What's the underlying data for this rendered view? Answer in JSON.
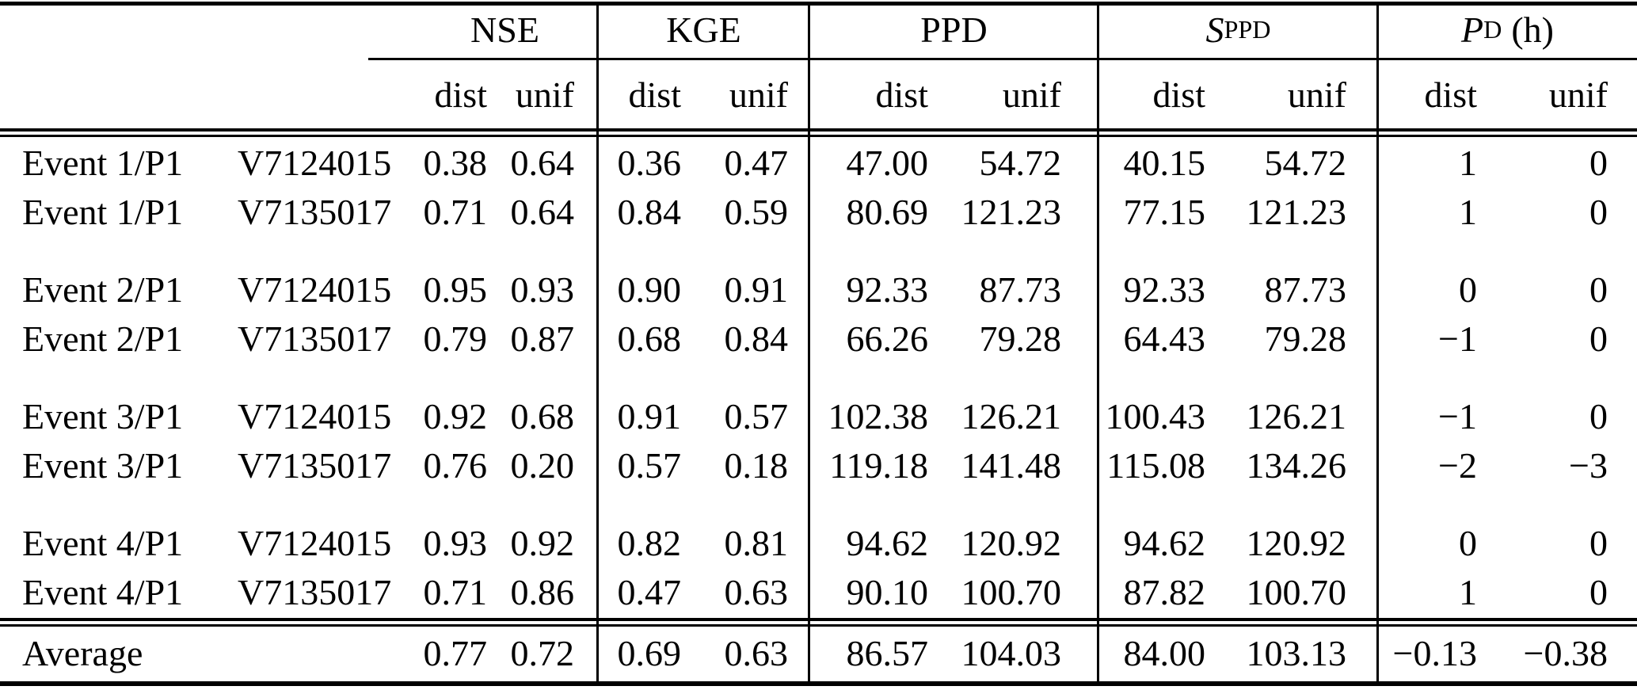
{
  "header": {
    "groups": [
      {
        "label": "NSE"
      },
      {
        "label": "KGE"
      },
      {
        "label": "PPD"
      },
      {
        "label": "S",
        "sub": "PPD"
      },
      {
        "label": "P",
        "sub": "D",
        "suffix": "(h)"
      }
    ],
    "sub_labels": {
      "dist": "dist",
      "unif": "unif"
    }
  },
  "rows": [
    {
      "event": "Event 1/P1",
      "station": "V7124015",
      "nse_dist": "0.38",
      "nse_unif": "0.64",
      "kge_dist": "0.36",
      "kge_unif": "0.47",
      "ppd_dist": "47.00",
      "ppd_unif": "54.72",
      "sppd_dist": "40.15",
      "sppd_unif": "54.72",
      "pd_dist": "1",
      "pd_unif": "0"
    },
    {
      "event": "Event 1/P1",
      "station": "V7135017",
      "nse_dist": "0.71",
      "nse_unif": "0.64",
      "kge_dist": "0.84",
      "kge_unif": "0.59",
      "ppd_dist": "80.69",
      "ppd_unif": "121.23",
      "sppd_dist": "77.15",
      "sppd_unif": "121.23",
      "pd_dist": "1",
      "pd_unif": "0"
    },
    {
      "event": "Event 2/P1",
      "station": "V7124015",
      "nse_dist": "0.95",
      "nse_unif": "0.93",
      "kge_dist": "0.90",
      "kge_unif": "0.91",
      "ppd_dist": "92.33",
      "ppd_unif": "87.73",
      "sppd_dist": "92.33",
      "sppd_unif": "87.73",
      "pd_dist": "0",
      "pd_unif": "0"
    },
    {
      "event": "Event 2/P1",
      "station": "V7135017",
      "nse_dist": "0.79",
      "nse_unif": "0.87",
      "kge_dist": "0.68",
      "kge_unif": "0.84",
      "ppd_dist": "66.26",
      "ppd_unif": "79.28",
      "sppd_dist": "64.43",
      "sppd_unif": "79.28",
      "pd_dist": "−1",
      "pd_unif": "0"
    },
    {
      "event": "Event 3/P1",
      "station": "V7124015",
      "nse_dist": "0.92",
      "nse_unif": "0.68",
      "kge_dist": "0.91",
      "kge_unif": "0.57",
      "ppd_dist": "102.38",
      "ppd_unif": "126.21",
      "sppd_dist": "100.43",
      "sppd_unif": "126.21",
      "pd_dist": "−1",
      "pd_unif": "0"
    },
    {
      "event": "Event 3/P1",
      "station": "V7135017",
      "nse_dist": "0.76",
      "nse_unif": "0.20",
      "kge_dist": "0.57",
      "kge_unif": "0.18",
      "ppd_dist": "119.18",
      "ppd_unif": "141.48",
      "sppd_dist": "115.08",
      "sppd_unif": "134.26",
      "pd_dist": "−2",
      "pd_unif": "−3"
    },
    {
      "event": "Event 4/P1",
      "station": "V7124015",
      "nse_dist": "0.93",
      "nse_unif": "0.92",
      "kge_dist": "0.82",
      "kge_unif": "0.81",
      "ppd_dist": "94.62",
      "ppd_unif": "120.92",
      "sppd_dist": "94.62",
      "sppd_unif": "120.92",
      "pd_dist": "0",
      "pd_unif": "0"
    },
    {
      "event": "Event 4/P1",
      "station": "V7135017",
      "nse_dist": "0.71",
      "nse_unif": "0.86",
      "kge_dist": "0.47",
      "kge_unif": "0.63",
      "ppd_dist": "90.10",
      "ppd_unif": "100.70",
      "sppd_dist": "87.82",
      "sppd_unif": "100.70",
      "pd_dist": "1",
      "pd_unif": "0"
    }
  ],
  "average": {
    "label": "Average",
    "nse_dist": "0.77",
    "nse_unif": "0.72",
    "kge_dist": "0.69",
    "kge_unif": "0.63",
    "ppd_dist": "86.57",
    "ppd_unif": "104.03",
    "sppd_dist": "84.00",
    "sppd_unif": "103.13",
    "pd_dist": "−0.13",
    "pd_unif": "−0.38"
  },
  "colors": {
    "text": "#000000",
    "rule": "#000000",
    "background": "#ffffff"
  }
}
